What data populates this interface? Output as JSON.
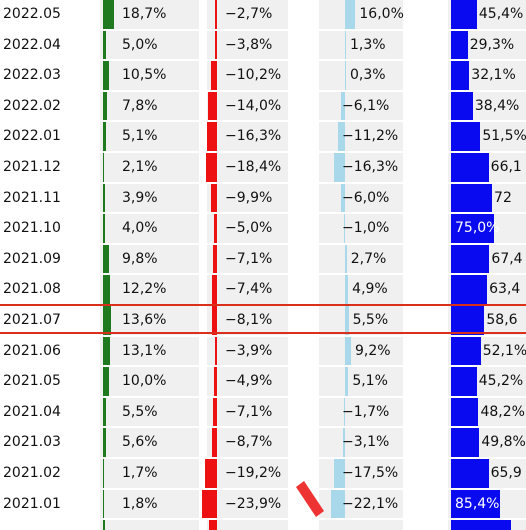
{
  "rows": [
    {
      "date": "2022.05",
      "v1": "18,7%",
      "v2": "−2,7%",
      "v3": "16,0%",
      "v4": "45,4%",
      "n1": 18.7,
      "n2": -2.7,
      "n3": 16.0,
      "n4": 45.4
    },
    {
      "date": "2022.04",
      "v1": "5,0%",
      "v2": "−3,8%",
      "v3": "1,3%",
      "v4": "29,3%",
      "n1": 5.0,
      "n2": -3.8,
      "n3": 1.3,
      "n4": 29.3
    },
    {
      "date": "2022.03",
      "v1": "10,5%",
      "v2": "−10,2%",
      "v3": "0,3%",
      "v4": "32,1%",
      "n1": 10.5,
      "n2": -10.2,
      "n3": 0.3,
      "n4": 32.1
    },
    {
      "date": "2022.02",
      "v1": "7,8%",
      "v2": "−14,0%",
      "v3": "−6,1%",
      "v4": "38,4%",
      "n1": 7.8,
      "n2": -14.0,
      "n3": -6.1,
      "n4": 38.4
    },
    {
      "date": "2022.01",
      "v1": "5,1%",
      "v2": "−16,3%",
      "v3": "−11,2%",
      "v4": "51,5%",
      "n1": 5.1,
      "n2": -16.3,
      "n3": -11.2,
      "n4": 51.5
    },
    {
      "date": "2021.12",
      "v1": "2,1%",
      "v2": "−18,4%",
      "v3": "−16,3%",
      "v4": "66,1",
      "n1": 2.1,
      "n2": -18.4,
      "n3": -16.3,
      "n4": 66.1
    },
    {
      "date": "2021.11",
      "v1": "3,9%",
      "v2": "−9,9%",
      "v3": "−6,0%",
      "v4": "72",
      "n1": 3.9,
      "n2": -9.9,
      "n3": -6.0,
      "n4": 72.0
    },
    {
      "date": "2021.10",
      "v1": "4,0%",
      "v2": "−5,0%",
      "v3": "−1,0%",
      "v4": "75,0%",
      "n1": 4.0,
      "n2": -5.0,
      "n3": -1.0,
      "n4": 75.0,
      "inside": true
    },
    {
      "date": "2021.09",
      "v1": "9,8%",
      "v2": "−7,1%",
      "v3": "2,7%",
      "v4": "67,4",
      "n1": 9.8,
      "n2": -7.1,
      "n3": 2.7,
      "n4": 67.4
    },
    {
      "date": "2021.08",
      "v1": "12,2%",
      "v2": "−7,4%",
      "v3": "4,9%",
      "v4": "63,4",
      "n1": 12.2,
      "n2": -7.4,
      "n3": 4.9,
      "n4": 63.4
    },
    {
      "date": "2021.07",
      "v1": "13,6%",
      "v2": "−8,1%",
      "v3": "5,5%",
      "v4": "58,6",
      "n1": 13.6,
      "n2": -8.1,
      "n3": 5.5,
      "n4": 58.6
    },
    {
      "date": "2021.06",
      "v1": "13,1%",
      "v2": "−3,9%",
      "v3": "9,2%",
      "v4": "52,1%",
      "n1": 13.1,
      "n2": -3.9,
      "n3": 9.2,
      "n4": 52.1
    },
    {
      "date": "2021.05",
      "v1": "10,0%",
      "v2": "−4,9%",
      "v3": "5,1%",
      "v4": "45,2%",
      "n1": 10.0,
      "n2": -4.9,
      "n3": 5.1,
      "n4": 45.2
    },
    {
      "date": "2021.04",
      "v1": "5,5%",
      "v2": "−7,1%",
      "v3": "−1,7%",
      "v4": "48,2%",
      "n1": 5.5,
      "n2": -7.1,
      "n3": -1.7,
      "n4": 48.2
    },
    {
      "date": "2021.03",
      "v1": "5,6%",
      "v2": "−8,7%",
      "v3": "−3,1%",
      "v4": "49,8%",
      "n1": 5.6,
      "n2": -8.7,
      "n3": -3.1,
      "n4": 49.8
    },
    {
      "date": "2021.02",
      "v1": "1,7%",
      "v2": "−19,2%",
      "v3": "−17,5%",
      "v4": "65,9",
      "n1": 1.7,
      "n2": -19.2,
      "n3": -17.5,
      "n4": 65.9
    },
    {
      "date": "2021.01",
      "v1": "1,8%",
      "v2": "−23,9%",
      "v3": "−22,1%",
      "v4": "85,4%",
      "n1": 1.8,
      "n2": -23.9,
      "n3": -22.1,
      "n4": 85.4,
      "inside": true
    }
  ],
  "colors": {
    "green": "#1f7a1f",
    "red": "#ee1111",
    "lightblue": "#a8d8ea",
    "blue": "#0a0af0",
    "highlight": "#d9301c"
  },
  "highlighted_row": "2021.07"
}
